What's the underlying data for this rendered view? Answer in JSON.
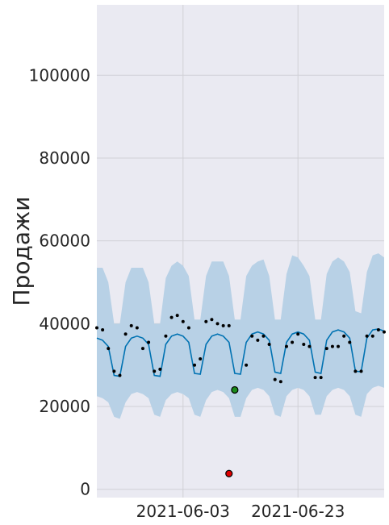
{
  "chart_data": {
    "type": "line",
    "title": "",
    "xlabel": "",
    "ylabel": "Продажи",
    "x_range": [
      "2021-05-19",
      "2021-07-08"
    ],
    "ylim": [
      -2000,
      117000
    ],
    "x_ticks": [
      {
        "date": "2021-06-03",
        "label": "2021-06-03"
      },
      {
        "date": "2021-06-23",
        "label": "2021-06-23"
      }
    ],
    "y_ticks": [
      {
        "value": 0,
        "label": "0"
      },
      {
        "value": 20000,
        "label": "20000"
      },
      {
        "value": 40000,
        "label": "40000"
      },
      {
        "value": 60000,
        "label": "60000"
      },
      {
        "value": 80000,
        "label": "80000"
      },
      {
        "value": 100000,
        "label": "100000"
      }
    ],
    "grid": true,
    "colors": {
      "background": "#eaeaf2",
      "grid": "#d0d0d6",
      "forecast_line": "#0072b2",
      "interval": "#b8d1e6",
      "observed": "#000000",
      "highlight_green": "#1a8a1a",
      "highlight_red": "#e00000"
    },
    "start_date": "2021-05-19",
    "forecast": {
      "yhat": [
        36500,
        36000,
        34500,
        27500,
        27300,
        34500,
        36500,
        37000,
        36500,
        35000,
        27500,
        27300,
        35000,
        37000,
        37500,
        37000,
        35500,
        28000,
        27800,
        35000,
        37000,
        37500,
        37000,
        35500,
        28000,
        27800,
        35500,
        37500,
        38000,
        37500,
        36000,
        28300,
        28000,
        35500,
        37500,
        38000,
        37500,
        36000,
        28300,
        28000,
        36000,
        38000,
        38500,
        38000,
        36500,
        28500,
        28400,
        36500,
        38500,
        38700,
        38200
      ],
      "yhat_upper": [
        53500,
        53500,
        50000,
        40000,
        40000,
        50000,
        53500,
        53500,
        53500,
        50000,
        40000,
        40000,
        51000,
        54000,
        55000,
        54000,
        51500,
        41000,
        41000,
        51500,
        55000,
        55000,
        55000,
        51500,
        41000,
        41000,
        51500,
        54000,
        55000,
        55500,
        51500,
        41000,
        41000,
        52000,
        56500,
        56000,
        54000,
        51500,
        41000,
        41000,
        52000,
        55000,
        56000,
        55000,
        52500,
        43000,
        42500,
        52500,
        56500,
        57000,
        56000
      ],
      "yhat_lower": [
        22500,
        22000,
        21000,
        17500,
        17000,
        21000,
        23000,
        23500,
        23000,
        22000,
        18000,
        17500,
        21500,
        23000,
        23500,
        23000,
        22000,
        18000,
        17500,
        21500,
        23500,
        24000,
        23500,
        22000,
        17500,
        17500,
        22000,
        24000,
        24500,
        24000,
        22500,
        18000,
        17500,
        22500,
        24000,
        24500,
        24000,
        22500,
        18000,
        18000,
        22500,
        24000,
        24500,
        24000,
        22500,
        18000,
        17500,
        23000,
        24500,
        25000,
        24500
      ]
    },
    "observed": [
      {
        "x": "2021-05-19",
        "y": 39000
      },
      {
        "x": "2021-05-20",
        "y": 38500
      },
      {
        "x": "2021-05-21",
        "y": 34000
      },
      {
        "x": "2021-05-22",
        "y": 28500
      },
      {
        "x": "2021-05-23",
        "y": 27500
      },
      {
        "x": "2021-05-24",
        "y": 37500
      },
      {
        "x": "2021-05-25",
        "y": 39500
      },
      {
        "x": "2021-05-26",
        "y": 39000
      },
      {
        "x": "2021-05-27",
        "y": 34000
      },
      {
        "x": "2021-05-28",
        "y": 35500
      },
      {
        "x": "2021-05-29",
        "y": 28500
      },
      {
        "x": "2021-05-30",
        "y": 29000
      },
      {
        "x": "2021-05-31",
        "y": 37000
      },
      {
        "x": "2021-06-01",
        "y": 41500
      },
      {
        "x": "2021-06-02",
        "y": 42000
      },
      {
        "x": "2021-06-03",
        "y": 40500
      },
      {
        "x": "2021-06-04",
        "y": 39000
      },
      {
        "x": "2021-06-05",
        "y": 30000
      },
      {
        "x": "2021-06-06",
        "y": 31500
      },
      {
        "x": "2021-06-07",
        "y": 40500
      },
      {
        "x": "2021-06-08",
        "y": 41000
      },
      {
        "x": "2021-06-09",
        "y": 40000
      },
      {
        "x": "2021-06-10",
        "y": 39500
      },
      {
        "x": "2021-06-11",
        "y": 39500
      },
      {
        "x": "2021-06-14",
        "y": 30000
      },
      {
        "x": "2021-06-15",
        "y": 37000
      },
      {
        "x": "2021-06-16",
        "y": 36000
      },
      {
        "x": "2021-06-17",
        "y": 37000
      },
      {
        "x": "2021-06-18",
        "y": 35000
      },
      {
        "x": "2021-06-19",
        "y": 26500
      },
      {
        "x": "2021-06-20",
        "y": 26000
      },
      {
        "x": "2021-06-21",
        "y": 34500
      },
      {
        "x": "2021-06-22",
        "y": 35500
      },
      {
        "x": "2021-06-23",
        "y": 37500
      },
      {
        "x": "2021-06-24",
        "y": 35000
      },
      {
        "x": "2021-06-25",
        "y": 34500
      },
      {
        "x": "2021-06-26",
        "y": 27000
      },
      {
        "x": "2021-06-27",
        "y": 27000
      },
      {
        "x": "2021-06-28",
        "y": 34000
      },
      {
        "x": "2021-06-29",
        "y": 34500
      },
      {
        "x": "2021-06-30",
        "y": 34500
      },
      {
        "x": "2021-07-01",
        "y": 37000
      },
      {
        "x": "2021-07-02",
        "y": 35500
      },
      {
        "x": "2021-07-03",
        "y": 28500
      },
      {
        "x": "2021-07-04",
        "y": 28500
      },
      {
        "x": "2021-07-05",
        "y": 37000
      },
      {
        "x": "2021-07-06",
        "y": 37000
      },
      {
        "x": "2021-07-07",
        "y": 38500
      },
      {
        "x": "2021-07-08",
        "y": 38000
      }
    ],
    "highlights": [
      {
        "x": "2021-06-12",
        "y": 24000,
        "color": "green"
      },
      {
        "x": "2021-06-11",
        "y": 3800,
        "color": "red"
      }
    ]
  }
}
